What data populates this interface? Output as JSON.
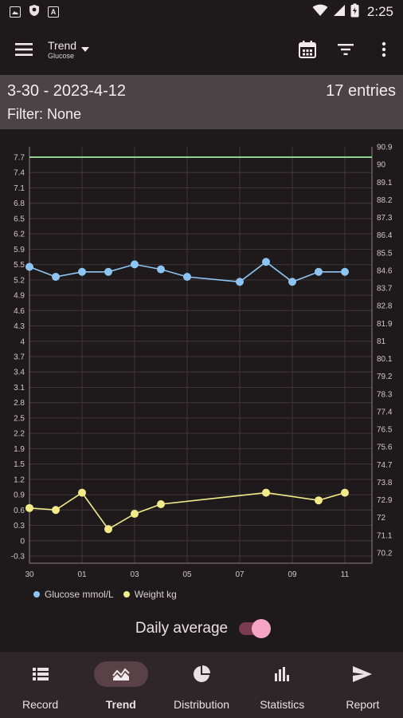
{
  "status_bar": {
    "time": "2:25",
    "icons": [
      "gallery-icon",
      "shield-icon",
      "a-icon",
      "wifi-icon",
      "signal-icon",
      "battery-icon"
    ]
  },
  "app_bar": {
    "title": "Trend",
    "subtitle": "Glucose",
    "actions": [
      "calendar-icon",
      "filter-icon",
      "more-vert-icon"
    ]
  },
  "range_panel": {
    "range": "3-30 - 2023-4-12",
    "entries": "17 entries",
    "filter": "Filter: None"
  },
  "chart_data": {
    "type": "line",
    "x_ticks": [
      "30",
      "01",
      "03",
      "05",
      "07",
      "09",
      "11"
    ],
    "left_ticks": [
      "7.7",
      "7.4",
      "7.1",
      "6.8",
      "6.5",
      "6.2",
      "5.9",
      "5.5",
      "5.2",
      "4.9",
      "4.6",
      "4.3",
      "4",
      "3.7",
      "3.4",
      "3.1",
      "2.8",
      "2.5",
      "2.2",
      "1.9",
      "1.5",
      "1.2",
      "0.9",
      "0.6",
      "0.3",
      "0",
      "-0.3"
    ],
    "right_ticks": [
      "90.9",
      "90",
      "89.1",
      "88.2",
      "87.3",
      "86.4",
      "85.5",
      "84.6",
      "83.7",
      "82.8",
      "81.9",
      "81",
      "80.1",
      "79.2",
      "78.3",
      "77.4",
      "76.5",
      "75.6",
      "74.7",
      "73.8",
      "72.9",
      "72",
      "71.1",
      "70.2"
    ],
    "left_ylim": [
      -0.3,
      7.7
    ],
    "right_ylim": [
      69.6,
      91.0
    ],
    "x_dates": [
      "03-30",
      "03-31",
      "04-01",
      "04-02",
      "04-03",
      "04-04",
      "04-05",
      "04-07",
      "04-08",
      "04-09",
      "04-10",
      "04-11"
    ],
    "series": [
      {
        "name": "Glucose mmol/L",
        "axis": "left",
        "color": "#8ec4f2",
        "x": [
          "03-30",
          "03-31",
          "04-01",
          "04-02",
          "04-03",
          "04-04",
          "04-05",
          "04-07",
          "04-08",
          "04-09",
          "04-10",
          "04-11"
        ],
        "values": [
          5.5,
          5.3,
          5.4,
          5.4,
          5.55,
          5.45,
          5.3,
          5.2,
          5.6,
          5.2,
          5.4,
          5.4
        ]
      },
      {
        "name": "Weight kg",
        "axis": "right",
        "color": "#f3ea8a",
        "x": [
          "03-30",
          "03-31",
          "04-01",
          "04-02",
          "04-03",
          "04-04",
          "04-08",
          "04-10",
          "04-11"
        ],
        "values": [
          72.1,
          72.0,
          72.9,
          71.0,
          71.8,
          72.3,
          72.9,
          72.5,
          72.9
        ]
      }
    ],
    "threshold": {
      "value": 7.7,
      "color": "#8fd18f"
    },
    "grid": true,
    "legend": "bottom-left"
  },
  "daily_average": {
    "label": "Daily average",
    "enabled": true
  },
  "bottom_nav": {
    "items": [
      {
        "label": "Record",
        "icon": "list-icon",
        "active": false
      },
      {
        "label": "Trend",
        "icon": "trend-icon",
        "active": true
      },
      {
        "label": "Distribution",
        "icon": "pie-icon",
        "active": false
      },
      {
        "label": "Statistics",
        "icon": "bar-chart-icon",
        "active": false
      },
      {
        "label": "Report",
        "icon": "send-icon",
        "active": false
      }
    ]
  }
}
